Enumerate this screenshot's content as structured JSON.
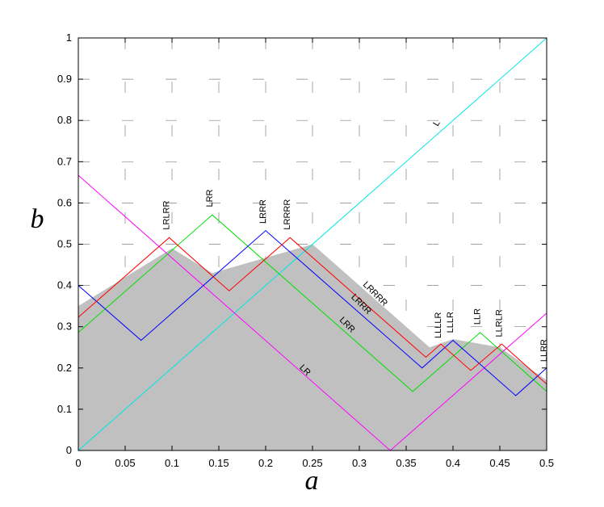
{
  "chart_data": {
    "type": "line",
    "title": "",
    "xlabel": "a",
    "ylabel": "b",
    "xlim": [
      0,
      0.5
    ],
    "ylim": [
      0,
      1
    ],
    "x_ticks": [
      "0",
      "0.05",
      "0.1",
      "0.15",
      "0.2",
      "0.25",
      "0.3",
      "0.35",
      "0.4",
      "0.45",
      "0.5"
    ],
    "y_ticks": [
      "0",
      "0.1",
      "0.2",
      "0.3",
      "0.4",
      "0.5",
      "0.6",
      "0.7",
      "0.8",
      "0.9",
      "1"
    ],
    "grid": "dashed",
    "shaded_region": {
      "color": "#c0c0c0",
      "x": [
        0,
        0.1,
        0.143,
        0.25,
        0.375,
        0.4,
        0.45,
        0.5,
        0.5,
        0
      ],
      "y": [
        0.35,
        0.49,
        0.43,
        0.5,
        0.25,
        0.27,
        0.25,
        0.17,
        0,
        0
      ]
    },
    "series": [
      {
        "color": "#00e5e5",
        "x": [
          0,
          0.5
        ],
        "y": [
          0,
          1
        ]
      },
      {
        "color": "#ff00ff",
        "x": [
          0,
          0.333,
          0.5
        ],
        "y": [
          0.667,
          0,
          0.333
        ]
      },
      {
        "color": "#00e000",
        "x": [
          0,
          0.143,
          0.357,
          0.429,
          0.5
        ],
        "y": [
          0.286,
          0.571,
          0.143,
          0.286,
          0.143
        ]
      },
      {
        "color": "#0000ff",
        "x": [
          0,
          0.067,
          0.2,
          0.367,
          0.4,
          0.467,
          0.5
        ],
        "y": [
          0.4,
          0.267,
          0.533,
          0.2,
          0.267,
          0.133,
          0.2
        ]
      },
      {
        "color": "#ff0000",
        "x": [
          0,
          0.097,
          0.161,
          0.226,
          0.371,
          0.387,
          0.419,
          0.452,
          0.5
        ],
        "y": [
          0.323,
          0.516,
          0.387,
          0.516,
          0.226,
          0.258,
          0.194,
          0.258,
          0.161
        ]
      }
    ],
    "annotations": [
      {
        "text": "L",
        "x": 0.385,
        "y": 0.79,
        "angle": -60
      },
      {
        "text": "LR",
        "x": 0.24,
        "y": 0.19,
        "angle": 45
      },
      {
        "text": "LRR",
        "x": 0.285,
        "y": 0.3,
        "angle": 45
      },
      {
        "text": "LRRR",
        "x": 0.3,
        "y": 0.35,
        "angle": 45
      },
      {
        "text": "LRRRR",
        "x": 0.315,
        "y": 0.375,
        "angle": 45
      },
      {
        "text": "LRLRR",
        "x": 0.097,
        "y": 0.535,
        "angle": -90
      },
      {
        "text": "LRR",
        "x": 0.143,
        "y": 0.59,
        "angle": -90
      },
      {
        "text": "LRRR",
        "x": 0.2,
        "y": 0.55,
        "angle": -90
      },
      {
        "text": "LRRRR",
        "x": 0.226,
        "y": 0.535,
        "angle": -90
      },
      {
        "text": "LLLLR",
        "x": 0.387,
        "y": 0.272,
        "angle": -90
      },
      {
        "text": "LLLR",
        "x": 0.4,
        "y": 0.285,
        "angle": -90
      },
      {
        "text": "LLR",
        "x": 0.429,
        "y": 0.305,
        "angle": -90
      },
      {
        "text": "LLRLR",
        "x": 0.452,
        "y": 0.275,
        "angle": -90
      },
      {
        "text": "LLRR",
        "x": 0.5,
        "y": 0.215,
        "angle": -90
      }
    ]
  }
}
